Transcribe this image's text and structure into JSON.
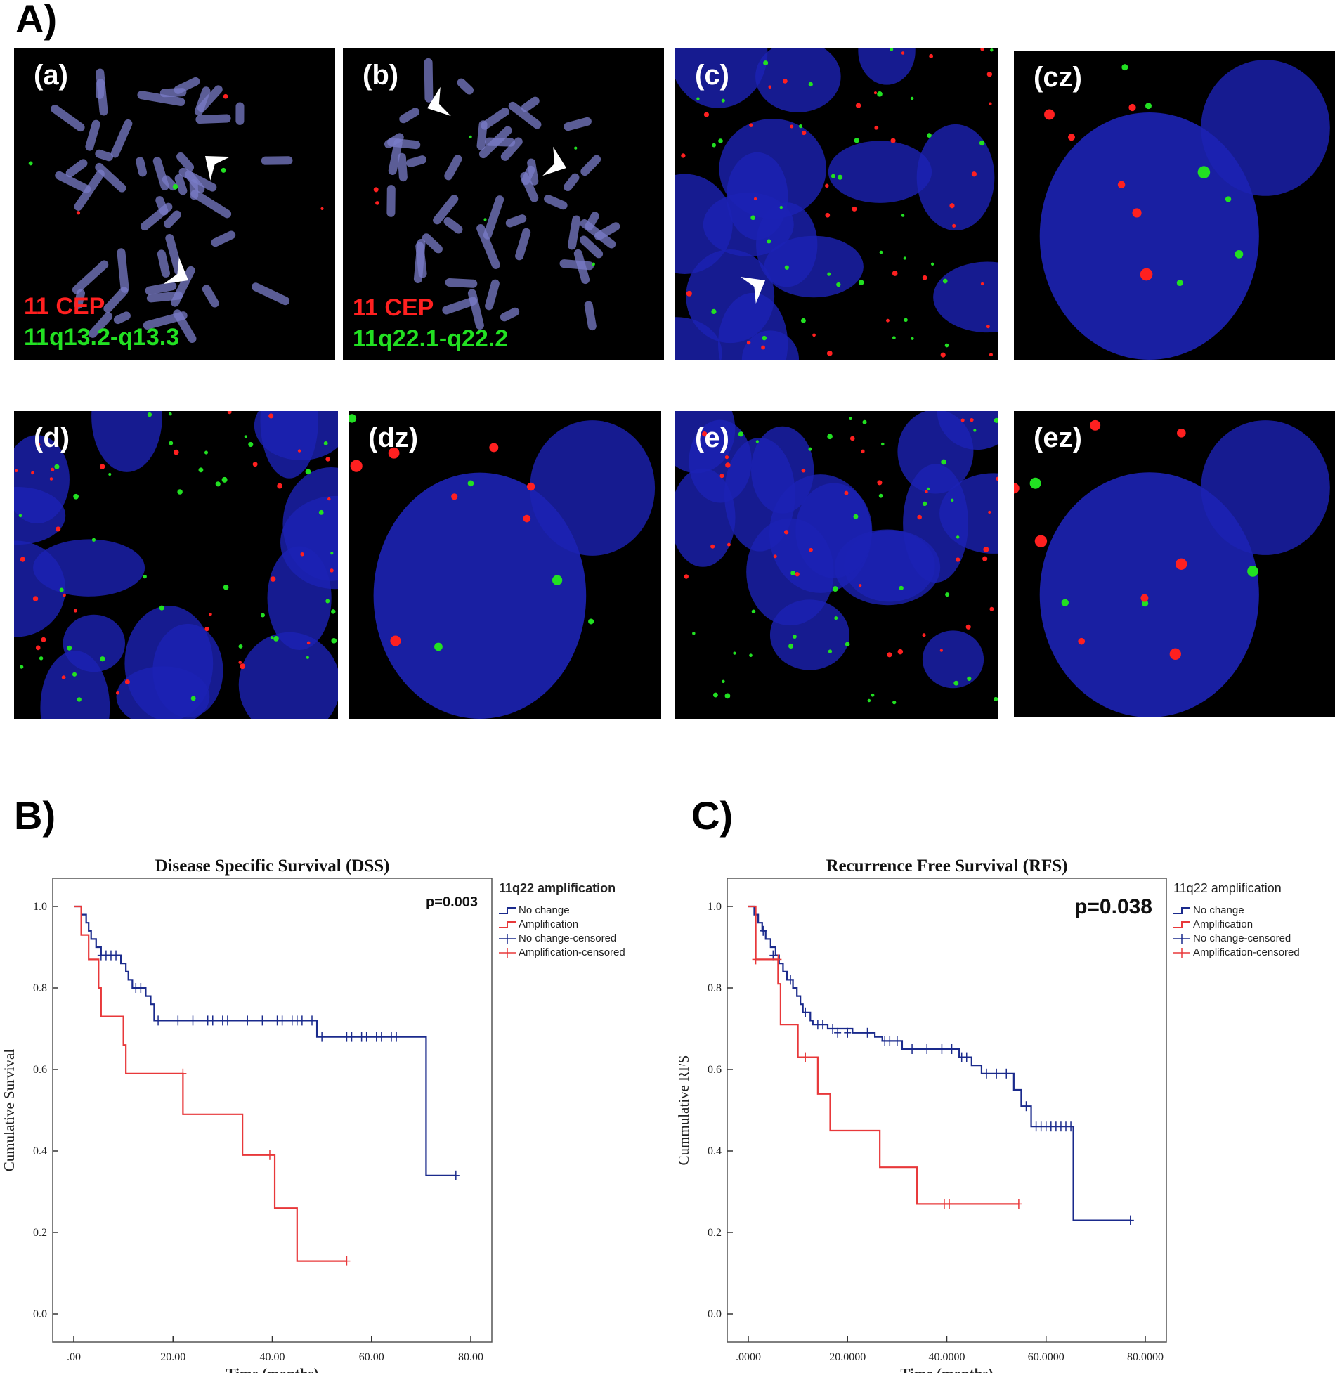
{
  "section_labels": {
    "A": "A)",
    "B": "B)",
    "C": "C)"
  },
  "fish_panels": [
    {
      "id": "a",
      "label": "(a)",
      "type": "metaphase",
      "probe_red": "11 CEP",
      "probe_green": "11q13.2-q13.3"
    },
    {
      "id": "b",
      "label": "(b)",
      "type": "metaphase",
      "probe_red": "11 CEP",
      "probe_green": "11q22.1-q22.2"
    },
    {
      "id": "c",
      "label": "(c)",
      "type": "nuclei"
    },
    {
      "id": "cz",
      "label": "(cz)",
      "type": "nucleus-zoom"
    },
    {
      "id": "d",
      "label": "(d)",
      "type": "nuclei"
    },
    {
      "id": "dz",
      "label": "(dz)",
      "type": "nucleus-zoom"
    },
    {
      "id": "e",
      "label": "(e)",
      "type": "nuclei"
    },
    {
      "id": "ez",
      "label": "(ez)",
      "type": "nucleus-zoom"
    }
  ],
  "colors": {
    "no_change": "#1a2a8c",
    "amplification": "#e8383a",
    "probe_red": "#ff2020",
    "probe_green": "#22e022",
    "dapi": "#1c22b4"
  },
  "chart_data": [
    {
      "type": "line",
      "subtype": "kaplan-meier",
      "title": "Disease Specific Survival (DSS)",
      "xlabel": "Time (months)",
      "ylabel": "Cumulative Survival",
      "xlim": [
        0,
        80
      ],
      "ylim": [
        0,
        1
      ],
      "x_ticks": [
        ".00",
        "20.00",
        "40.00",
        "60.00",
        "80.00"
      ],
      "y_ticks": [
        "0.0",
        "0.2",
        "0.4",
        "0.6",
        "0.8",
        "1.0"
      ],
      "p_value": "p=0.003",
      "legend_title": "11q22 amplification",
      "legend_position": "right",
      "legend": [
        "No change",
        "Amplification",
        "No change-censored",
        "Amplification-censored"
      ],
      "series": [
        {
          "name": "No change",
          "steps": [
            [
              0,
              1.0
            ],
            [
              1.5,
              0.98
            ],
            [
              2.5,
              0.96
            ],
            [
              3,
              0.94
            ],
            [
              3.5,
              0.92
            ],
            [
              4.5,
              0.9
            ],
            [
              5.5,
              0.88
            ],
            [
              9.5,
              0.86
            ],
            [
              10.5,
              0.84
            ],
            [
              11,
              0.82
            ],
            [
              11.8,
              0.8
            ],
            [
              14.5,
              0.78
            ],
            [
              15.5,
              0.76
            ],
            [
              16.2,
              0.72
            ],
            [
              49,
              0.68
            ],
            [
              71,
              0.34
            ],
            [
              77,
              0.34
            ]
          ],
          "censored": [
            [
              5.5,
              0.88
            ],
            [
              6.5,
              0.88
            ],
            [
              7.5,
              0.88
            ],
            [
              8.5,
              0.88
            ],
            [
              12.5,
              0.8
            ],
            [
              13.5,
              0.8
            ],
            [
              17,
              0.72
            ],
            [
              21,
              0.72
            ],
            [
              24,
              0.72
            ],
            [
              27,
              0.72
            ],
            [
              28,
              0.72
            ],
            [
              30,
              0.72
            ],
            [
              31,
              0.72
            ],
            [
              35,
              0.72
            ],
            [
              38,
              0.72
            ],
            [
              41,
              0.72
            ],
            [
              42,
              0.72
            ],
            [
              44,
              0.72
            ],
            [
              45,
              0.72
            ],
            [
              46,
              0.72
            ],
            [
              48,
              0.72
            ],
            [
              50,
              0.68
            ],
            [
              55,
              0.68
            ],
            [
              56,
              0.68
            ],
            [
              58,
              0.68
            ],
            [
              59,
              0.68
            ],
            [
              61,
              0.68
            ],
            [
              62,
              0.68
            ],
            [
              64,
              0.68
            ],
            [
              65,
              0.68
            ],
            [
              77,
              0.34
            ]
          ]
        },
        {
          "name": "Amplification",
          "steps": [
            [
              0,
              1.0
            ],
            [
              1.5,
              0.93
            ],
            [
              3,
              0.87
            ],
            [
              5,
              0.8
            ],
            [
              5.5,
              0.73
            ],
            [
              10,
              0.66
            ],
            [
              10.5,
              0.59
            ],
            [
              22,
              0.49
            ],
            [
              34,
              0.39
            ],
            [
              40.5,
              0.26
            ],
            [
              45,
              0.13
            ],
            [
              55,
              0.13
            ]
          ],
          "censored": [
            [
              22,
              0.59
            ],
            [
              39.5,
              0.39
            ],
            [
              55,
              0.13
            ]
          ]
        }
      ]
    },
    {
      "type": "line",
      "subtype": "kaplan-meier",
      "title": "Recurrence Free Survival (RFS)",
      "xlabel": "Time (months)",
      "ylabel": "Cummulative RFS",
      "xlim": [
        0,
        80
      ],
      "ylim": [
        0,
        1
      ],
      "x_ticks": [
        ".0000",
        "20.0000",
        "40.0000",
        "60.0000",
        "80.0000"
      ],
      "y_ticks": [
        "0.0",
        "0.2",
        "0.4",
        "0.6",
        "0.8",
        "1.0"
      ],
      "p_value": "p=0.038",
      "legend_title": "11q22 amplification",
      "legend_position": "right",
      "legend": [
        "No change",
        "Amplification",
        "No change-censored",
        "Amplification-censored"
      ],
      "series": [
        {
          "name": "No change",
          "steps": [
            [
              0,
              1.0
            ],
            [
              1.2,
              0.98
            ],
            [
              2,
              0.96
            ],
            [
              2.8,
              0.94
            ],
            [
              3.5,
              0.92
            ],
            [
              4.5,
              0.9
            ],
            [
              5.5,
              0.88
            ],
            [
              6.2,
              0.86
            ],
            [
              7,
              0.84
            ],
            [
              7.8,
              0.82
            ],
            [
              9,
              0.8
            ],
            [
              9.8,
              0.78
            ],
            [
              10.5,
              0.76
            ],
            [
              11,
              0.74
            ],
            [
              12.5,
              0.72
            ],
            [
              13,
              0.71
            ],
            [
              16,
              0.7
            ],
            [
              21,
              0.69
            ],
            [
              25.5,
              0.68
            ],
            [
              27,
              0.67
            ],
            [
              31,
              0.65
            ],
            [
              42.5,
              0.63
            ],
            [
              45,
              0.61
            ],
            [
              47,
              0.59
            ],
            [
              53.5,
              0.55
            ],
            [
              55,
              0.51
            ],
            [
              57,
              0.46
            ],
            [
              65.5,
              0.23
            ],
            [
              77,
              0.23
            ]
          ],
          "censored": [
            [
              3,
              0.94
            ],
            [
              5,
              0.88
            ],
            [
              8.5,
              0.82
            ],
            [
              11.5,
              0.74
            ],
            [
              14,
              0.71
            ],
            [
              15,
              0.71
            ],
            [
              17,
              0.7
            ],
            [
              18,
              0.69
            ],
            [
              20,
              0.69
            ],
            [
              24,
              0.69
            ],
            [
              27.5,
              0.67
            ],
            [
              28.5,
              0.67
            ],
            [
              30,
              0.67
            ],
            [
              33,
              0.65
            ],
            [
              36,
              0.65
            ],
            [
              39,
              0.65
            ],
            [
              41,
              0.65
            ],
            [
              43,
              0.63
            ],
            [
              44,
              0.63
            ],
            [
              48,
              0.59
            ],
            [
              50,
              0.59
            ],
            [
              52,
              0.59
            ],
            [
              56,
              0.51
            ],
            [
              58,
              0.46
            ],
            [
              59,
              0.46
            ],
            [
              60,
              0.46
            ],
            [
              61,
              0.46
            ],
            [
              62,
              0.46
            ],
            [
              63,
              0.46
            ],
            [
              64,
              0.46
            ],
            [
              65,
              0.46
            ],
            [
              77,
              0.23
            ]
          ]
        },
        {
          "name": "Amplification",
          "steps": [
            [
              0,
              1.0
            ],
            [
              1.5,
              0.87
            ],
            [
              6,
              0.81
            ],
            [
              6.5,
              0.71
            ],
            [
              10,
              0.63
            ],
            [
              14,
              0.54
            ],
            [
              16.5,
              0.45
            ],
            [
              26.5,
              0.36
            ],
            [
              34,
              0.27
            ],
            [
              54.5,
              0.27
            ]
          ],
          "censored": [
            [
              1.5,
              0.87
            ],
            [
              6,
              0.87
            ],
            [
              11.5,
              0.63
            ],
            [
              39.5,
              0.27
            ],
            [
              40.5,
              0.27
            ],
            [
              54.5,
              0.27
            ]
          ]
        }
      ]
    }
  ]
}
